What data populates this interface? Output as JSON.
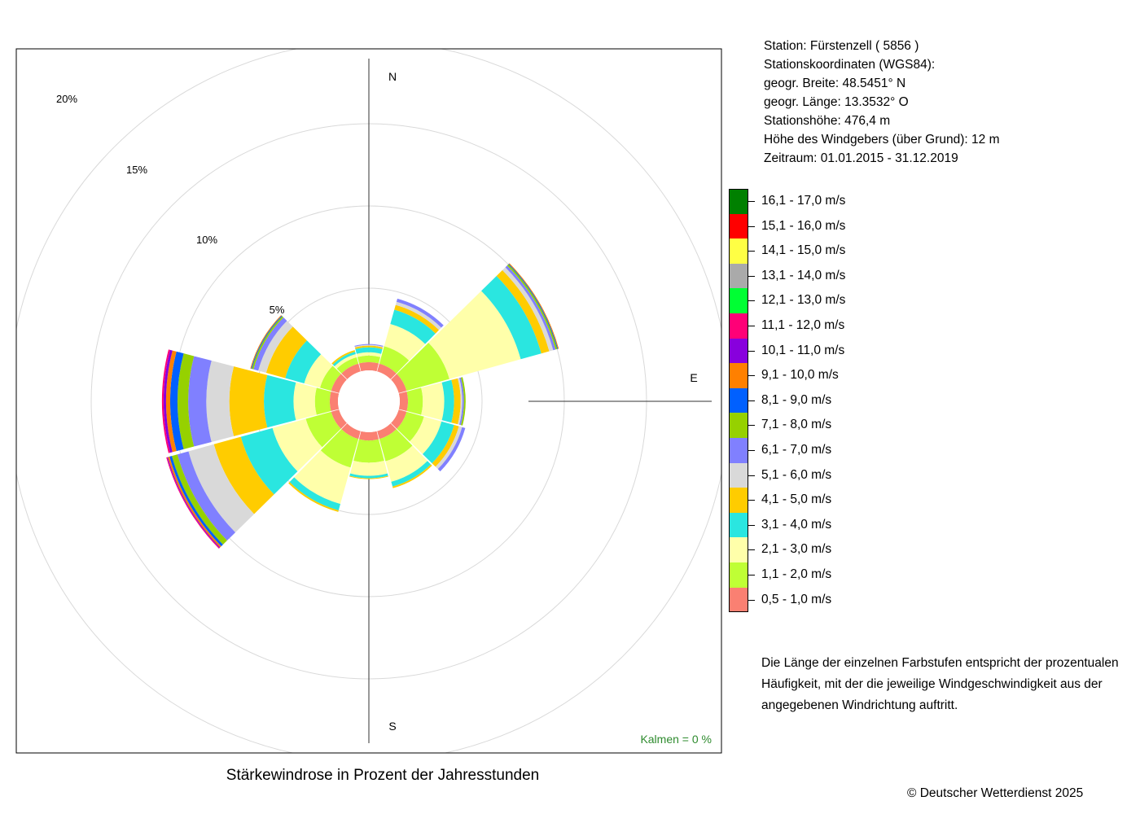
{
  "station": {
    "name_line": "Station:  Fürstenzell  ( 5856 )",
    "coord_heading": "Stationskoordinaten (WGS84):",
    "lat_line": "geogr. Breite: 48.5451° N",
    "lon_line": "geogr. Länge: 13.3532° O",
    "elevation_line": "Stationshöhe: 476,4 m",
    "sensor_height_line": "Höhe des Windgebers (über Grund): 12 m",
    "period_line": "Zeitraum: 01.01.2015 - 31.12.2019"
  },
  "note": "Die Länge der einzelnen Farbstufen entspricht der prozentualen Häufigkeit, mit der die jeweilige Windgeschwindigkeit aus der angegebenen Windrichtung auftritt.",
  "copyright": "© Deutscher Wetterdienst  2025",
  "colors": {
    "grid_circle": "#d9d9d9",
    "axis_line": "#333333",
    "calm_text": "#2e8b2e"
  },
  "chart_data": {
    "type": "windrose",
    "title": "Stärkewindrose in Prozent der Jahresstunden",
    "unit": "%",
    "rings": [
      5,
      10,
      15,
      20
    ],
    "ring_labels": [
      "5%",
      "10%",
      "15%",
      "20%"
    ],
    "compass_labels": {
      "N": "N",
      "E": "E",
      "S": "S"
    },
    "calm_label": "Kalmen  =  0 %",
    "directions_deg": [
      0,
      30,
      60,
      90,
      120,
      150,
      180,
      210,
      240,
      270,
      300,
      330
    ],
    "speed_bins": [
      {
        "label": "0,5 - 1,0 m/s",
        "color": "#fa8072"
      },
      {
        "label": "1,1 - 2,0 m/s",
        "color": "#bfff35"
      },
      {
        "label": "2,1 - 3,0 m/s",
        "color": "#ffffaa"
      },
      {
        "label": "3,1 - 4,0 m/s",
        "color": "#2ae6e0"
      },
      {
        "label": "4,1 - 5,0 m/s",
        "color": "#ffcc00"
      },
      {
        "label": "5,1 - 6,0 m/s",
        "color": "#d9d9d9"
      },
      {
        "label": "6,1 - 7,0 m/s",
        "color": "#8080ff"
      },
      {
        "label": "7,1 - 8,0 m/s",
        "color": "#96d100"
      },
      {
        "label": "8,1 - 9,0 m/s",
        "color": "#0060ff"
      },
      {
        "label": "9,1 - 10,0 m/s",
        "color": "#ff8000"
      },
      {
        "label": "10,1 - 11,0 m/s",
        "color": "#8800dd"
      },
      {
        "label": "11,1 - 12,0 m/s",
        "color": "#ff0077"
      },
      {
        "label": "12,1 - 13,0 m/s",
        "color": "#00ff33"
      },
      {
        "label": "13,1 - 14,0 m/s",
        "color": "#aaaaaa"
      },
      {
        "label": "14,1 - 15,0 m/s",
        "color": "#ffff44"
      },
      {
        "label": "15,1 - 16,0 m/s",
        "color": "#ff0000"
      },
      {
        "label": "16,1 - 17,0 m/s",
        "color": "#008000"
      }
    ],
    "series": [
      {
        "dir": 0,
        "cumulative": [
          0.5,
          0.9,
          1.1,
          1.4,
          1.5,
          1.55,
          1.6
        ]
      },
      {
        "dir": 30,
        "cumulative": [
          0.5,
          1.6,
          3.0,
          3.9,
          4.2,
          4.4,
          4.6
        ]
      },
      {
        "dir": 60,
        "cumulative": [
          0.5,
          3.2,
          7.7,
          9.0,
          9.5,
          9.75,
          9.9,
          10.0,
          10.05,
          10.1
        ]
      },
      {
        "dir": 90,
        "cumulative": [
          0.5,
          1.4,
          2.7,
          3.3,
          3.7,
          3.8,
          3.9,
          4.0
        ]
      },
      {
        "dir": 120,
        "cumulative": [
          0.5,
          1.6,
          2.7,
          3.5,
          3.8,
          4.0,
          4.2
        ]
      },
      {
        "dir": 150,
        "cumulative": [
          0.5,
          1.9,
          3.2,
          3.5,
          3.6
        ]
      },
      {
        "dir": 180,
        "cumulative": [
          0.5,
          1.85,
          2.65,
          2.8,
          2.85
        ]
      },
      {
        "dir": 210,
        "cumulative": [
          0.5,
          2.3,
          4.6,
          5.0,
          5.1
        ]
      },
      {
        "dir": 240,
        "cumulative": [
          0.5,
          2.1,
          4.2,
          6.2,
          7.9,
          9.5,
          10.2,
          10.55,
          10.7,
          10.8,
          10.85,
          10.9
        ]
      },
      {
        "dir": 270,
        "cumulative": [
          0.5,
          1.4,
          2.7,
          4.5,
          6.6,
          8.0,
          9.1,
          9.75,
          10.2,
          10.45,
          10.6,
          10.7
        ]
      },
      {
        "dir": 300,
        "cumulative": [
          0.5,
          1.2,
          2.2,
          3.4,
          4.6,
          5.1,
          5.4,
          5.5,
          5.55,
          5.6
        ]
      },
      {
        "dir": 330,
        "cumulative": [
          0.5,
          0.9,
          1.1,
          1.25,
          1.35
        ]
      }
    ]
  }
}
